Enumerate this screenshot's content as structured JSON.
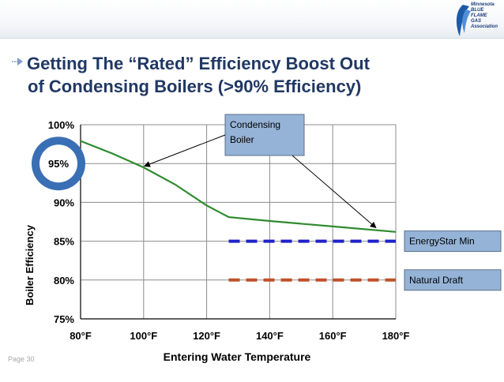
{
  "header": {
    "logo_text": "Minnesota\nBLUE\nFLAME\nGAS\nAssociation"
  },
  "title": {
    "line1": "Getting The “Rated” Efficiency Boost Out",
    "line2": "of Condensing Boilers (>90% Efficiency)"
  },
  "page_label": "Page 30",
  "colors": {
    "title": "#203864",
    "boiler_curve": "#2e8b2e",
    "energystar": "#1f22c8",
    "natural_draft": "#c0502a",
    "callout_fill": "#95b3d7",
    "highlight_ring": "#3a6fb5"
  },
  "chart_data": {
    "type": "line",
    "xlabel": "Entering Water Temperature",
    "ylabel": "Boiler Efficiency",
    "xlim": [
      80,
      180
    ],
    "ylim": [
      75,
      100
    ],
    "x_ticks": [
      80,
      100,
      120,
      140,
      160,
      180
    ],
    "x_tick_labels": [
      "80°F",
      "100°F",
      "120°F",
      "140°F",
      "160°F",
      "180°F"
    ],
    "y_ticks": [
      75,
      80,
      85,
      90,
      95,
      100
    ],
    "y_tick_labels": [
      "75%",
      "80%",
      "85%",
      "90%",
      "95%",
      "100%"
    ],
    "grid": true,
    "series": [
      {
        "name": "Condensing Boiler",
        "style": "solid",
        "x": [
          80,
          90,
          100,
          110,
          120,
          127,
          140,
          160,
          180
        ],
        "y": [
          97.9,
          96.3,
          94.5,
          92.3,
          89.6,
          88.1,
          87.6,
          86.9,
          86.2
        ]
      },
      {
        "name": "EnergyStar Min",
        "style": "dashed",
        "x": [
          127,
          180
        ],
        "y": [
          85,
          85
        ]
      },
      {
        "name": "Natural Draft",
        "style": "dashed",
        "x": [
          127,
          180
        ],
        "y": [
          80,
          80
        ]
      }
    ],
    "annotations": {
      "condensing_callout": "Condensing\nBoiler",
      "energystar_label": "EnergyStar Min",
      "natural_draft_label": "Natural Draft",
      "highlight": "95%"
    }
  }
}
